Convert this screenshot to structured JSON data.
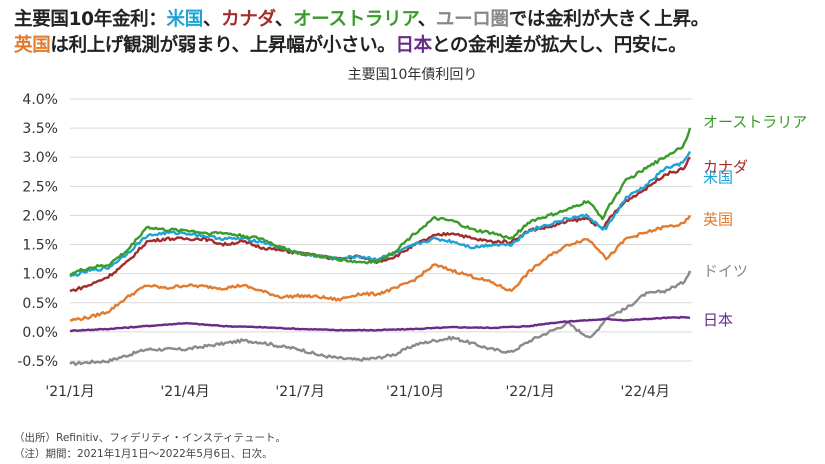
{
  "headline": {
    "line1": [
      {
        "text": "主要国10年金利：",
        "color": "#222222"
      },
      {
        "text": "米国",
        "color": "#1fa3d4"
      },
      {
        "text": "、",
        "color": "#222222"
      },
      {
        "text": "カナダ",
        "color": "#a52a2a"
      },
      {
        "text": "、",
        "color": "#222222"
      },
      {
        "text": "オーストラリア",
        "color": "#3a9a2a"
      },
      {
        "text": "、",
        "color": "#222222"
      },
      {
        "text": "ユーロ圏",
        "color": "#888888"
      },
      {
        "text": "では金利が大きく上昇。",
        "color": "#222222"
      }
    ],
    "line2": [
      {
        "text": "英国",
        "color": "#e07b2f"
      },
      {
        "text": "は利上げ観測が弱まり、上昇幅が小さい。",
        "color": "#222222"
      },
      {
        "text": "日本",
        "color": "#6a2a8a"
      },
      {
        "text": "との金利差が拡大し、円安に。",
        "color": "#222222"
      }
    ]
  },
  "chart_title": "主要国10年債利回り",
  "notes": {
    "source": "（出所）Refinitiv、フィデリティ・インスティテュート。",
    "period": "（注）期間：2021年1月1日〜2022年5月6日、日次。"
  },
  "chart_data": {
    "type": "line",
    "title": "主要国10年債利回り",
    "xlabel": "",
    "ylabel": "",
    "ylim": [
      -0.5,
      4.0
    ],
    "y_ticks": [
      "-0.5%",
      "0.0%",
      "0.5%",
      "1.0%",
      "1.5%",
      "2.0%",
      "2.5%",
      "3.0%",
      "3.5%",
      "4.0%"
    ],
    "y_tick_values": [
      -0.5,
      0.0,
      0.5,
      1.0,
      1.5,
      2.0,
      2.5,
      3.0,
      3.5,
      4.0
    ],
    "x_range": [
      0,
      16.17
    ],
    "x_ticks": [
      {
        "label": "'21/1月",
        "pos": 0
      },
      {
        "label": "'21/4月",
        "pos": 3
      },
      {
        "label": "'21/7月",
        "pos": 6
      },
      {
        "label": "'21/10月",
        "pos": 9
      },
      {
        "label": "'22/1月",
        "pos": 12
      },
      {
        "label": "'22/4月",
        "pos": 15
      }
    ],
    "series": [
      {
        "name": "ドイツ",
        "color": "#8a8a8a",
        "x": [
          0,
          0.5,
          1,
          1.5,
          2,
          2.5,
          3,
          3.5,
          4,
          4.5,
          5,
          5.5,
          6,
          6.5,
          7,
          7.5,
          8,
          8.5,
          9,
          9.5,
          10,
          10.5,
          11,
          11.5,
          12,
          12.5,
          13,
          13.3,
          13.6,
          14,
          14.5,
          15,
          15.5,
          16,
          16.17
        ],
        "values": [
          -0.55,
          -0.52,
          -0.5,
          -0.4,
          -0.3,
          -0.3,
          -0.3,
          -0.25,
          -0.2,
          -0.15,
          -0.18,
          -0.25,
          -0.3,
          -0.4,
          -0.45,
          -0.48,
          -0.45,
          -0.38,
          -0.22,
          -0.15,
          -0.1,
          -0.2,
          -0.3,
          -0.35,
          -0.15,
          0.0,
          0.15,
          0.0,
          -0.1,
          0.25,
          0.4,
          0.65,
          0.7,
          0.85,
          1.05
        ]
      },
      {
        "name": "日本",
        "color": "#6a2a8a",
        "x": [
          0,
          1,
          2,
          3,
          4,
          5,
          6,
          7,
          8,
          9,
          10,
          11,
          12,
          12.5,
          13,
          13.5,
          14,
          14.5,
          15,
          15.5,
          16,
          16.17
        ],
        "values": [
          0.02,
          0.05,
          0.1,
          0.15,
          0.1,
          0.08,
          0.05,
          0.03,
          0.03,
          0.05,
          0.08,
          0.07,
          0.1,
          0.15,
          0.18,
          0.2,
          0.22,
          0.2,
          0.22,
          0.24,
          0.25,
          0.24
        ]
      },
      {
        "name": "英国",
        "color": "#e07b2f",
        "x": [
          0,
          0.5,
          1,
          1.5,
          2,
          2.5,
          3,
          3.5,
          4,
          4.5,
          5,
          5.5,
          6,
          6.5,
          7,
          7.5,
          8,
          8.5,
          9,
          9.5,
          10,
          10.5,
          11,
          11.5,
          12,
          12.5,
          13,
          13.5,
          13.9,
          14,
          14.5,
          15,
          15.5,
          16,
          16.17
        ],
        "values": [
          0.2,
          0.25,
          0.35,
          0.6,
          0.8,
          0.75,
          0.8,
          0.78,
          0.75,
          0.8,
          0.7,
          0.6,
          0.62,
          0.6,
          0.55,
          0.65,
          0.65,
          0.75,
          0.9,
          1.15,
          1.05,
          0.95,
          0.85,
          0.7,
          1.05,
          1.3,
          1.5,
          1.6,
          1.35,
          1.25,
          1.6,
          1.7,
          1.8,
          1.85,
          2.0
        ]
      },
      {
        "name": "カナダ",
        "color": "#a52a2a",
        "x": [
          0,
          0.5,
          1,
          1.5,
          2,
          2.5,
          3,
          3.5,
          4,
          4.5,
          5,
          5.5,
          6,
          6.5,
          7,
          7.5,
          8,
          8.5,
          9,
          9.5,
          10,
          10.5,
          11,
          11.5,
          12,
          12.5,
          13,
          13.5,
          13.9,
          14,
          14.5,
          15,
          15.5,
          16,
          16.17
        ],
        "values": [
          0.7,
          0.8,
          0.95,
          1.2,
          1.55,
          1.6,
          1.6,
          1.6,
          1.5,
          1.55,
          1.45,
          1.4,
          1.35,
          1.3,
          1.25,
          1.3,
          1.2,
          1.3,
          1.5,
          1.65,
          1.7,
          1.6,
          1.55,
          1.55,
          1.75,
          1.8,
          1.9,
          1.95,
          1.75,
          1.9,
          2.25,
          2.45,
          2.7,
          2.8,
          3.0
        ]
      },
      {
        "name": "米国",
        "color": "#1fa3d4",
        "x": [
          0,
          0.5,
          1,
          1.5,
          2,
          2.5,
          3,
          3.5,
          4,
          4.5,
          5,
          5.5,
          6,
          6.5,
          7,
          7.5,
          8,
          8.5,
          9,
          9.5,
          10,
          10.5,
          11,
          11.5,
          12,
          12.5,
          13,
          13.5,
          13.9,
          14,
          14.5,
          15,
          15.5,
          16,
          16.17
        ],
        "values": [
          0.95,
          1.05,
          1.1,
          1.35,
          1.65,
          1.7,
          1.7,
          1.65,
          1.6,
          1.6,
          1.55,
          1.45,
          1.35,
          1.3,
          1.25,
          1.3,
          1.25,
          1.35,
          1.5,
          1.6,
          1.55,
          1.45,
          1.5,
          1.5,
          1.75,
          1.85,
          1.95,
          2.0,
          1.75,
          1.8,
          2.3,
          2.5,
          2.8,
          2.9,
          3.1
        ]
      },
      {
        "name": "オーストラリア",
        "color": "#3a9a2a",
        "x": [
          0,
          0.5,
          1,
          1.5,
          2,
          2.5,
          3,
          3.5,
          4,
          4.5,
          5,
          5.5,
          6,
          6.5,
          7,
          7.5,
          8,
          8.5,
          9,
          9.5,
          10,
          10.5,
          11,
          11.5,
          12,
          12.5,
          13,
          13.5,
          13.9,
          14,
          14.5,
          15,
          15.5,
          16,
          16.17
        ],
        "values": [
          1.0,
          1.1,
          1.15,
          1.4,
          1.8,
          1.75,
          1.75,
          1.7,
          1.7,
          1.65,
          1.6,
          1.45,
          1.35,
          1.3,
          1.25,
          1.2,
          1.2,
          1.4,
          1.7,
          1.95,
          1.9,
          1.75,
          1.7,
          1.6,
          1.9,
          2.0,
          2.1,
          2.25,
          1.95,
          2.1,
          2.6,
          2.8,
          3.0,
          3.2,
          3.5
        ]
      }
    ]
  }
}
